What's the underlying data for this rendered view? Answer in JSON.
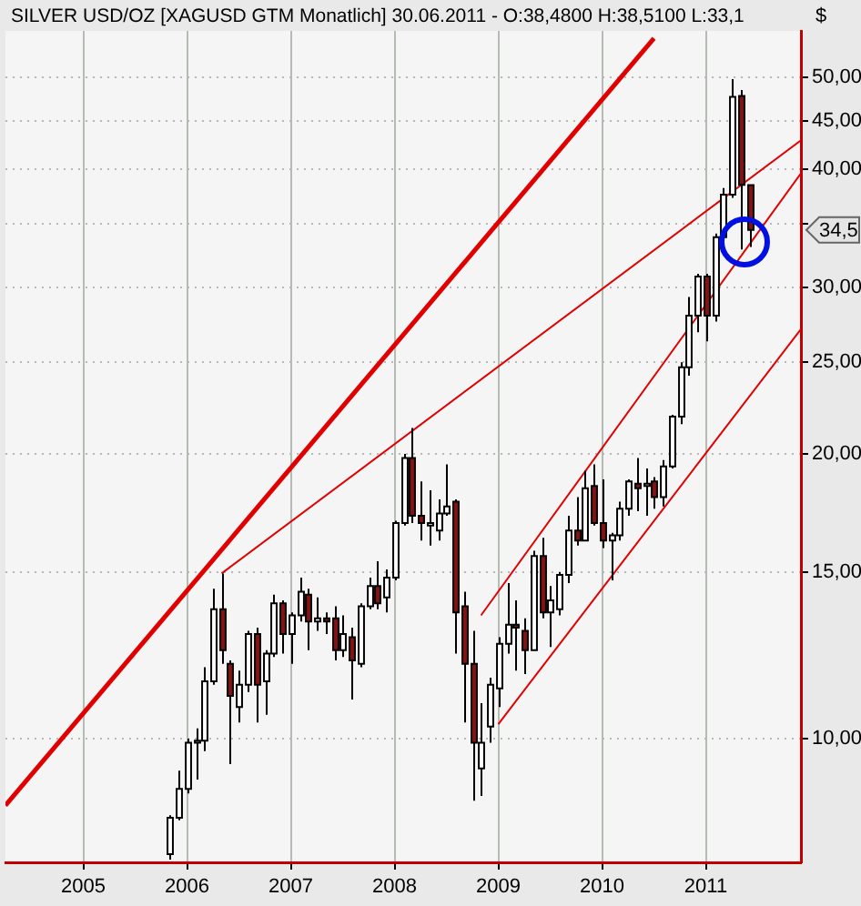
{
  "chart_data": {
    "type": "candlestick",
    "title": "SILVER USD/OZ [XAGUSD GTM  Monatlich] 30.06.2011 - O:38,4800 H:38,5100 L:33,1",
    "ylabel": "$",
    "x": [
      "2005-11",
      "2005-12",
      "2006-01",
      "2006-02",
      "2006-03",
      "2006-04",
      "2006-05",
      "2006-06",
      "2006-07",
      "2006-08",
      "2006-09",
      "2006-10",
      "2006-11",
      "2006-12",
      "2007-01",
      "2007-02",
      "2007-03",
      "2007-04",
      "2007-05",
      "2007-06",
      "2007-07",
      "2007-08",
      "2007-09",
      "2007-10",
      "2007-11",
      "2007-12",
      "2008-01",
      "2008-02",
      "2008-03",
      "2008-04",
      "2008-05",
      "2008-06",
      "2008-07",
      "2008-08",
      "2008-09",
      "2008-10",
      "2008-11",
      "2008-12",
      "2009-01",
      "2009-02",
      "2009-03",
      "2009-04",
      "2009-05",
      "2009-06",
      "2009-07",
      "2009-08",
      "2009-09",
      "2009-10",
      "2009-11",
      "2009-12",
      "2010-01",
      "2010-02",
      "2010-03",
      "2010-04",
      "2010-05",
      "2010-06",
      "2010-07",
      "2010-08",
      "2010-09",
      "2010-10",
      "2010-11",
      "2010-12",
      "2011-01",
      "2011-02",
      "2011-03",
      "2011-04",
      "2011-05",
      "2011-06"
    ],
    "ohlc": [
      [
        7.55,
        8.3,
        7.45,
        8.25
      ],
      [
        8.25,
        9.25,
        8.2,
        8.85
      ],
      [
        8.85,
        10.0,
        8.75,
        9.9
      ],
      [
        9.9,
        10.25,
        9.05,
        9.95
      ],
      [
        9.95,
        11.9,
        9.7,
        11.5
      ],
      [
        11.5,
        14.4,
        11.4,
        13.7
      ],
      [
        13.7,
        14.95,
        12.0,
        12.4
      ],
      [
        12.0,
        12.1,
        9.4,
        11.1
      ],
      [
        10.8,
        11.8,
        10.4,
        11.4
      ],
      [
        11.4,
        13.0,
        11.2,
        12.9
      ],
      [
        12.9,
        13.1,
        10.4,
        11.4
      ],
      [
        11.5,
        12.4,
        10.6,
        12.3
      ],
      [
        12.3,
        14.2,
        12.2,
        13.9
      ],
      [
        13.9,
        14.0,
        12.3,
        12.9
      ],
      [
        12.9,
        13.6,
        12.0,
        13.5
      ],
      [
        13.5,
        14.8,
        13.3,
        14.3
      ],
      [
        14.2,
        14.4,
        12.4,
        13.3
      ],
      [
        13.3,
        14.1,
        13.0,
        13.4
      ],
      [
        13.4,
        13.6,
        12.9,
        13.3
      ],
      [
        13.4,
        13.8,
        12.1,
        12.4
      ],
      [
        12.4,
        13.5,
        12.2,
        12.9
      ],
      [
        12.8,
        13.1,
        11.0,
        12.1
      ],
      [
        12.0,
        13.9,
        11.9,
        13.8
      ],
      [
        13.8,
        14.8,
        13.7,
        14.5
      ],
      [
        14.5,
        15.4,
        13.7,
        13.9
      ],
      [
        14.1,
        15.1,
        13.6,
        14.8
      ],
      [
        14.8,
        17.0,
        14.7,
        16.9
      ],
      [
        16.9,
        20.0,
        16.8,
        19.8
      ],
      [
        19.8,
        21.3,
        16.9,
        17.2
      ],
      [
        17.2,
        18.7,
        16.2,
        16.9
      ],
      [
        16.8,
        18.3,
        16.0,
        16.9
      ],
      [
        16.6,
        17.9,
        16.2,
        17.3
      ],
      [
        17.3,
        19.5,
        17.2,
        17.6
      ],
      [
        17.8,
        17.9,
        12.3,
        13.6
      ],
      [
        13.8,
        14.3,
        10.4,
        12.0
      ],
      [
        12.0,
        13.0,
        8.6,
        9.9
      ],
      [
        9.3,
        10.9,
        8.7,
        9.9
      ],
      [
        10.3,
        11.6,
        9.9,
        11.4
      ],
      [
        11.3,
        12.8,
        10.8,
        12.6
      ],
      [
        12.6,
        14.6,
        12.3,
        13.2
      ],
      [
        13.2,
        14.0,
        11.8,
        13.1
      ],
      [
        13.0,
        13.4,
        11.7,
        12.4
      ],
      [
        12.4,
        15.8,
        12.4,
        15.6
      ],
      [
        15.6,
        16.3,
        13.4,
        13.6
      ],
      [
        13.6,
        14.5,
        12.5,
        14.0
      ],
      [
        13.7,
        15.0,
        13.5,
        14.9
      ],
      [
        14.9,
        17.2,
        14.6,
        16.6
      ],
      [
        16.6,
        18.0,
        16.0,
        16.2
      ],
      [
        16.2,
        19.2,
        16.2,
        18.4
      ],
      [
        18.5,
        19.5,
        16.8,
        16.9
      ],
      [
        16.9,
        18.8,
        15.9,
        16.2
      ],
      [
        16.2,
        16.5,
        14.7,
        16.4
      ],
      [
        16.4,
        17.8,
        16.2,
        17.5
      ],
      [
        17.5,
        18.8,
        17.2,
        18.7
      ],
      [
        18.6,
        19.8,
        17.4,
        18.4
      ],
      [
        18.5,
        19.3,
        17.2,
        18.6
      ],
      [
        18.7,
        18.9,
        17.5,
        18.0
      ],
      [
        18.0,
        19.7,
        17.6,
        19.4
      ],
      [
        19.4,
        22.0,
        19.3,
        21.9
      ],
      [
        21.9,
        25.0,
        21.5,
        24.7
      ],
      [
        24.7,
        29.3,
        24.2,
        28.0
      ],
      [
        28.0,
        31.0,
        26.9,
        30.8
      ],
      [
        30.8,
        31.0,
        26.3,
        28.0
      ],
      [
        28.0,
        34.2,
        27.6,
        33.9
      ],
      [
        33.9,
        38.2,
        33.4,
        37.6
      ],
      [
        37.6,
        49.8,
        37.3,
        47.7
      ],
      [
        47.8,
        48.5,
        32.9,
        38.5
      ],
      [
        38.48,
        38.51,
        33.1,
        34.5
      ]
    ],
    "series": [
      {
        "type": "line",
        "color": "#e00000",
        "x": [
          "2004-04",
          "2010-07"
        ],
        "values": [
          8.5,
          55
        ]
      },
      {
        "type": "line",
        "color": "#e00000",
        "x": [
          "2006-05",
          "2011-12"
        ],
        "values": [
          14.95,
          42.9
        ]
      },
      {
        "type": "line",
        "color": "#e00000",
        "x": [
          "2008-11",
          "2011-12"
        ],
        "values": [
          13.5,
          39.6
        ]
      },
      {
        "type": "line",
        "color": "#e00000",
        "x": [
          "2009-01",
          "2011-12"
        ],
        "values": [
          10.36,
          27.1
        ]
      }
    ],
    "xlim": [
      "2004-04",
      "2011-12"
    ],
    "xticks": [
      {
        "value": "2005-01",
        "label": "2005"
      },
      {
        "value": "2006-01",
        "label": "2006"
      },
      {
        "value": "2007-01",
        "label": "2007"
      },
      {
        "value": "2008-01",
        "label": "2008"
      },
      {
        "value": "2009-01",
        "label": "2009"
      },
      {
        "value": "2010-01",
        "label": "2010"
      },
      {
        "value": "2011-01",
        "label": "2011"
      }
    ],
    "ylim": [
      7.4,
      56
    ],
    "yticks": [
      {
        "value": 10,
        "label": "10,00"
      },
      {
        "value": 15,
        "label": "15,00"
      },
      {
        "value": 20,
        "label": "20,00"
      },
      {
        "value": 25,
        "label": "25,00"
      },
      {
        "value": 30,
        "label": "30,00"
      },
      {
        "value": 35,
        "label": null
      },
      {
        "value": 40,
        "label": "40,00"
      },
      {
        "value": 45,
        "label": "45,00"
      },
      {
        "value": 50,
        "label": "50,00"
      }
    ],
    "log": "y",
    "grid": true,
    "annotations": [
      "34,5"
    ]
  }
}
